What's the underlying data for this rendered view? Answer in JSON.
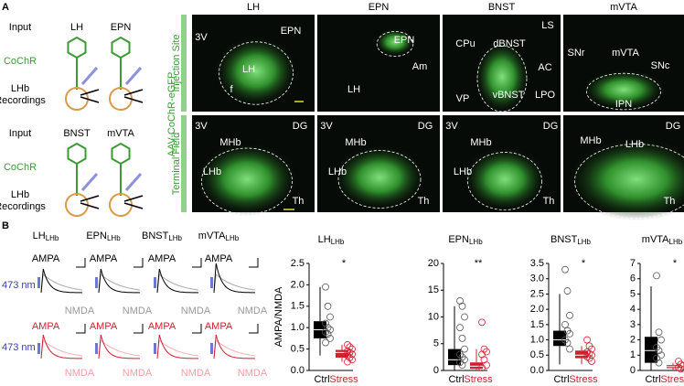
{
  "panel_a": {
    "label": "A",
    "schematics": [
      {
        "input": "Input",
        "sources": [
          "LH",
          "EPN"
        ],
        "opsin": "CoChR",
        "recording": [
          "LHb",
          "Recordings"
        ]
      },
      {
        "input": "Input",
        "sources": [
          "BNST",
          "mVTA"
        ],
        "opsin": "CoChR",
        "recording": [
          "LHb",
          "Recordings"
        ]
      }
    ],
    "vector": "AAV-CoChR-eGFP",
    "rows": [
      "Injection Site",
      "Terminal Field"
    ],
    "columns": [
      "LH",
      "EPN",
      "BNST",
      "mVTA"
    ],
    "images": [
      [
        [
          "3V",
          "EPN",
          "LH",
          "f"
        ],
        [
          "EPN",
          "LH",
          "Am"
        ],
        [
          "LS",
          "CPu",
          "dBNST",
          "AC",
          "VP",
          "vBNST",
          "LPO"
        ],
        [
          "SNr",
          "mVTA",
          "SNc",
          "IPN"
        ]
      ],
      [
        [
          "3V",
          "DG",
          "MHb",
          "LHb",
          "Th"
        ],
        [
          "3V",
          "DG",
          "MHb",
          "LHb",
          "Th"
        ],
        [
          "3V",
          "DG",
          "MHb",
          "LHb",
          "Th"
        ],
        [
          "DG",
          "MHb",
          "LHb",
          "Th"
        ]
      ]
    ]
  },
  "panel_b": {
    "label": "B",
    "light": [
      "473 nm",
      "473 nm"
    ],
    "traces": [
      {
        "title": "LH",
        "sub": "LHb",
        "ampa": "AMPA",
        "nmda": "NMDA",
        "ampa_stress": "AMPA",
        "nmda_stress": "NMDA"
      },
      {
        "title": "EPN",
        "sub": "LHb",
        "ampa": "AMPA",
        "nmda": "NMDA",
        "ampa_stress": "AMPA",
        "nmda_stress": "NMDA"
      },
      {
        "title": "BNST",
        "sub": "LHb",
        "ampa": "AMPA",
        "nmda": "NMDA",
        "ampa_stress": "AMPA",
        "nmda_stress": "NMDA"
      },
      {
        "title": "mVTA",
        "sub": "LHb",
        "ampa": "AMPA",
        "nmda": "NMDA",
        "ampa_stress": "AMPA",
        "nmda_stress": "NMDA"
      }
    ]
  },
  "chart_data": [
    {
      "type": "box",
      "title": "LH",
      "title_sub": "LHb",
      "ylabel": "AMPA/NMDA",
      "significance": "*",
      "categories": [
        "Ctrl",
        "Stress"
      ],
      "colors": [
        "#000000",
        "#d0202f"
      ],
      "ylim": [
        0,
        2.5
      ],
      "yticks": [
        {
          "value": 0,
          "label": "0.0"
        },
        0.5,
        {
          "value": 1,
          "label": "1.0"
        },
        1.5,
        {
          "value": 2,
          "label": "2.0"
        },
        2.5
      ],
      "boxes": [
        {
          "whislo": 0.35,
          "q1": 0.75,
          "med": 0.95,
          "q3": 1.15,
          "whishi": 1.95,
          "points": [
            1.95,
            1.5,
            1.25,
            1.1,
            1.0,
            0.95,
            0.9,
            0.85,
            0.75,
            0.65
          ]
        },
        {
          "whislo": 0.2,
          "q1": 0.3,
          "med": 0.42,
          "q3": 0.48,
          "whishi": 0.6,
          "points": [
            0.6,
            0.55,
            0.5,
            0.45,
            0.42,
            0.38,
            0.35,
            0.3,
            0.25,
            0.2
          ]
        }
      ]
    },
    {
      "type": "box",
      "title": "EPN",
      "title_sub": "LHb",
      "significance": "**",
      "categories": [
        "Ctrl",
        "Stress"
      ],
      "colors": [
        "#000000",
        "#d0202f"
      ],
      "ylim": [
        0,
        20
      ],
      "yticks": [
        0,
        5,
        10,
        15,
        20
      ],
      "boxes": [
        {
          "whislo": 0,
          "q1": 1,
          "med": 2,
          "q3": 4,
          "whishi": 12,
          "points": [
            13,
            12,
            10,
            8,
            6,
            4,
            3,
            2.5,
            2,
            1.5,
            1
          ]
        },
        {
          "whislo": 0,
          "q1": 0.3,
          "med": 0.8,
          "q3": 1.5,
          "whishi": 4,
          "points": [
            9,
            4,
            3.5,
            3,
            2,
            1,
            0.5
          ]
        }
      ]
    },
    {
      "type": "box",
      "title": "BNST",
      "title_sub": "LHb",
      "significance": "*",
      "categories": [
        "Ctrl",
        "Stress"
      ],
      "colors": [
        "#000000",
        "#d0202f"
      ],
      "ylim": [
        0,
        3.5
      ],
      "yticks": [
        {
          "value": 0,
          "label": "0.0"
        },
        0.5,
        {
          "value": 1,
          "label": "1.0"
        },
        1.5,
        {
          "value": 2,
          "label": "2.0"
        },
        2.5,
        {
          "value": 3,
          "label": "3.0"
        },
        3.5
      ],
      "boxes": [
        {
          "whislo": 0.2,
          "q1": 0.8,
          "med": 1.0,
          "q3": 1.3,
          "whishi": 2.5,
          "points": [
            3.3,
            2.6,
            1.8,
            1.5,
            1.3,
            1.2,
            1.0,
            0.9,
            0.7
          ]
        },
        {
          "whislo": 0.2,
          "q1": 0.4,
          "med": 0.5,
          "q3": 0.65,
          "whishi": 0.8,
          "points": [
            1.0,
            0.8,
            0.7,
            0.6,
            0.55,
            0.5,
            0.45,
            0.4,
            0.3
          ]
        }
      ]
    },
    {
      "type": "box",
      "title": "mVTA",
      "title_sub": "LHb",
      "significance": "*",
      "categories": [
        "Ctrl",
        "Stress"
      ],
      "colors": [
        "#000000",
        "#d0202f"
      ],
      "ylim": [
        0,
        7
      ],
      "yticks": [
        0,
        1,
        2,
        3,
        4,
        5,
        6,
        7
      ],
      "boxes": [
        {
          "whislo": 0,
          "q1": 0.5,
          "med": 1.3,
          "q3": 2.2,
          "whishi": 5.5,
          "points": [
            6.2,
            2.5,
            2,
            1.5,
            1.3,
            1,
            0.8,
            0.5
          ]
        },
        {
          "whislo": 0,
          "q1": 0.15,
          "med": 0.25,
          "q3": 0.35,
          "whishi": 0.5,
          "points": [
            0.6,
            0.4,
            0.3,
            0.2,
            0.1
          ]
        }
      ]
    }
  ]
}
